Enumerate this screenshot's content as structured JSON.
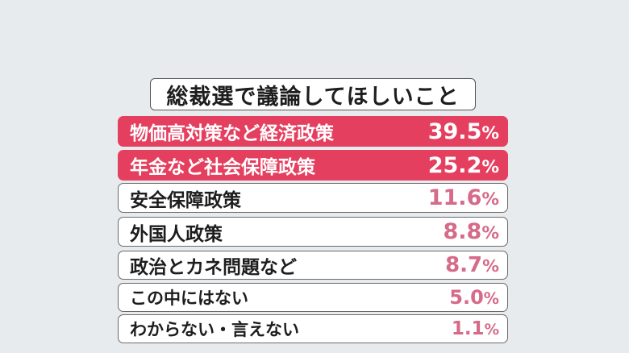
{
  "chart_data": {
    "type": "table",
    "title": "総裁選で議論してほしいこと",
    "items": [
      {
        "label": "物価高対策など経済政策",
        "value": 39.5,
        "value_text": "39.5",
        "unit": "%",
        "highlight": true
      },
      {
        "label": "年金など社会保障政策",
        "value": 25.2,
        "value_text": "25.2",
        "unit": "%",
        "highlight": true
      },
      {
        "label": "安全保障政策",
        "value": 11.6,
        "value_text": "11.6",
        "unit": "%",
        "highlight": false
      },
      {
        "label": "外国人政策",
        "value": 8.8,
        "value_text": "8.8",
        "unit": "%",
        "highlight": false
      },
      {
        "label": "政治とカネ問題など",
        "value": 8.7,
        "value_text": "8.7",
        "unit": "%",
        "highlight": false
      },
      {
        "label": "この中にはない",
        "value": 5.0,
        "value_text": "5.0",
        "unit": "%",
        "highlight": false
      },
      {
        "label": "わからない・言えない",
        "value": 1.1,
        "value_text": "1.1",
        "unit": "%",
        "highlight": false
      }
    ],
    "colors": {
      "highlight_bg": "#e53f5f",
      "highlight_text": "#ffffff",
      "normal_bg": "#ffffff",
      "normal_text": "#1d1d1d",
      "normal_value": "#d66a88",
      "page_bg": "#e8ebee"
    }
  }
}
